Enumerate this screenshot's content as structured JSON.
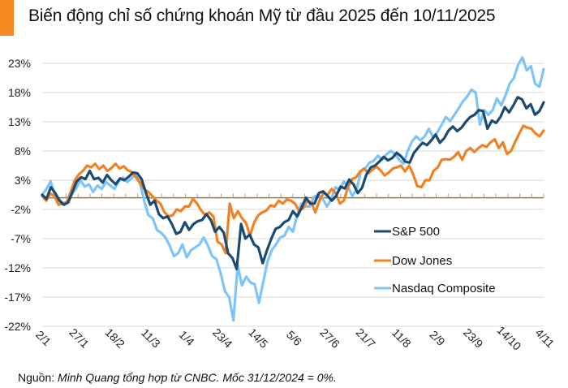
{
  "title": "Biến động chỉ số chứng khoán Mỹ từ đầu 2025 đến 10/11/2025",
  "accent_color": "#f58a20",
  "footer": {
    "prefix": "Nguồn: ",
    "text": "Minh Quang tổng hợp từ CNBC. Mốc 31/12/2024 = 0%."
  },
  "chart_data": {
    "type": "line",
    "title": "Biến động chỉ số chứng khoán Mỹ từ đầu 2025 đến 10/11/2025",
    "xlabel": "",
    "ylabel": "",
    "ylim": [
      -22,
      25
    ],
    "yticks": [
      23,
      18,
      13,
      8,
      3,
      -2,
      -7,
      -12,
      -17,
      -22
    ],
    "ytick_labels": [
      "23%",
      "18%",
      "13%",
      "8%",
      "3%",
      "-2%",
      "-7%",
      "-12%",
      "-17%",
      "-22%"
    ],
    "xtick_labels": [
      "2/1",
      "27/1",
      "18/2",
      "11/3",
      "1/4",
      "23/4",
      "14/5",
      "5/6",
      "27/6",
      "21/7",
      "11/8",
      "2/9",
      "23/9",
      "14/10",
      "4/11"
    ],
    "grid": true,
    "legend": "center-right",
    "series": [
      {
        "name": "S&P 500",
        "color": "#1b4b72",
        "values": [
          0.5,
          -0.2,
          1.8,
          0.8,
          -0.5,
          -1.2,
          -0.8,
          1.0,
          2.8,
          3.5,
          3.2,
          4.6,
          3.2,
          3.4,
          2.6,
          3.9,
          3.0,
          2.3,
          3.3,
          3.0,
          3.6,
          4.3,
          4.2,
          3.2,
          0.8,
          -1.2,
          -0.5,
          -2.8,
          -3.5,
          -3.2,
          -4.5,
          -6.2,
          -5.8,
          -4.2,
          -5.5,
          -4.5,
          -4.0,
          -3.8,
          -2.8,
          -3.8,
          -5.8,
          -5.0,
          -6.0,
          -9.5,
          -10.3,
          -12.2,
          -4.5,
          -7.0,
          -6.3,
          -8.0,
          -8.5,
          -11.2,
          -9.0,
          -7.0,
          -5.3,
          -5.0,
          -4.2,
          -3.8,
          -2.3,
          -3.2,
          -1.7,
          0.0,
          -1.0,
          -1.0,
          0.8,
          1.1,
          0.3,
          -0.5,
          0.3,
          1.9,
          1.6,
          3.1,
          2.3,
          0.8,
          1.7,
          4.0,
          5.2,
          5.5,
          6.2,
          7.0,
          6.4,
          6.8,
          7.7,
          7.1,
          6.2,
          6.0,
          7.7,
          8.6,
          9.4,
          9.0,
          9.8,
          10.8,
          9.4,
          10.2,
          11.5,
          12.2,
          11.4,
          12.0,
          13.0,
          13.8,
          14.2,
          15.0,
          14.8,
          11.8,
          13.2,
          12.8,
          13.8,
          15.5,
          14.6,
          15.8,
          17.2,
          16.8,
          15.3,
          16.0,
          14.2,
          14.8,
          16.3
        ]
      },
      {
        "name": "Dow Jones",
        "color": "#f08223",
        "values": [
          0.3,
          -0.5,
          0.7,
          0.3,
          -1.2,
          -1.0,
          -0.8,
          1.0,
          3.0,
          4.0,
          4.6,
          5.5,
          5.2,
          5.8,
          4.9,
          5.5,
          4.6,
          5.1,
          5.8,
          5.0,
          5.4,
          4.7,
          4.4,
          3.5,
          2.5,
          1.5,
          1.0,
          0.3,
          -0.5,
          -1.0,
          -2.5,
          -3.2,
          -3.0,
          -2.0,
          -2.3,
          -1.5,
          -1.5,
          -0.2,
          -1.0,
          -2.2,
          -3.0,
          -2.5,
          -3.2,
          -7.5,
          -8.0,
          -9.5,
          -1.0,
          -3.5,
          -2.3,
          -3.5,
          -4.3,
          -6.5,
          -4.2,
          -3.0,
          -2.5,
          -2.2,
          -1.3,
          -1.5,
          -0.5,
          -1.0,
          -0.3,
          -0.5,
          -1.0,
          -2.2,
          -1.8,
          -0.5,
          -0.8,
          -2.5,
          -0.5,
          0.8,
          0.5,
          1.5,
          0.8,
          -1.0,
          -0.5,
          1.8,
          3.2,
          3.5,
          4.5,
          5.0,
          4.2,
          4.8,
          5.3,
          4.7,
          3.8,
          4.3,
          5.0,
          5.2,
          5.5,
          4.5,
          5.5,
          4.0,
          2.0,
          1.8,
          3.0,
          3.0,
          4.6,
          5.2,
          6.5,
          6.6,
          6.5,
          7.0,
          7.8,
          6.5,
          8.0,
          8.5,
          7.8,
          8.5,
          9.0,
          8.7,
          9.5,
          10.0,
          8.5,
          9.5,
          7.5,
          8.0,
          9.5,
          11.0,
          12.3,
          12.0,
          11.8,
          11.0,
          10.5,
          11.5
        ]
      },
      {
        "name": "Nasdaq Composite",
        "color": "#7dc4fb",
        "values": [
          0.5,
          1.5,
          2.8,
          0.3,
          -0.3,
          -1.0,
          -0.6,
          0.6,
          1.6,
          3.0,
          1.9,
          2.3,
          1.0,
          2.1,
          1.5,
          2.7,
          2.1,
          1.5,
          2.8,
          3.5,
          2.7,
          3.3,
          4.1,
          2.5,
          -0.5,
          -3.0,
          -3.5,
          -5.5,
          -6.0,
          -6.8,
          -8.2,
          -10.0,
          -9.5,
          -8.0,
          -10.2,
          -9.0,
          -8.5,
          -8.0,
          -6.8,
          -8.2,
          -10.0,
          -10.5,
          -13.0,
          -16.0,
          -17.0,
          -21.0,
          -11.5,
          -15.0,
          -13.5,
          -14.5,
          -14.8,
          -18.0,
          -14.5,
          -11.0,
          -9.0,
          -8.0,
          -6.8,
          -6.5,
          -5.0,
          -5.8,
          -3.0,
          -1.0,
          -1.5,
          -1.5,
          0.2,
          0.5,
          -0.2,
          -1.5,
          -0.3,
          1.8,
          1.3,
          2.8,
          1.8,
          0.3,
          1.5,
          4.5,
          5.0,
          6.0,
          6.3,
          7.2,
          6.5,
          7.4,
          8.0,
          7.5,
          6.5,
          5.8,
          8.0,
          9.6,
          10.5,
          9.8,
          10.5,
          11.8,
          10.3,
          11.2,
          12.5,
          13.8,
          13.1,
          14.2,
          15.3,
          16.5,
          17.3,
          18.5,
          18.0,
          12.5,
          15.0,
          14.2,
          15.0,
          17.0,
          15.8,
          17.5,
          19.5,
          20.5,
          22.8,
          24.0,
          21.8,
          22.5,
          19.5,
          19.0,
          22.0
        ]
      }
    ]
  }
}
